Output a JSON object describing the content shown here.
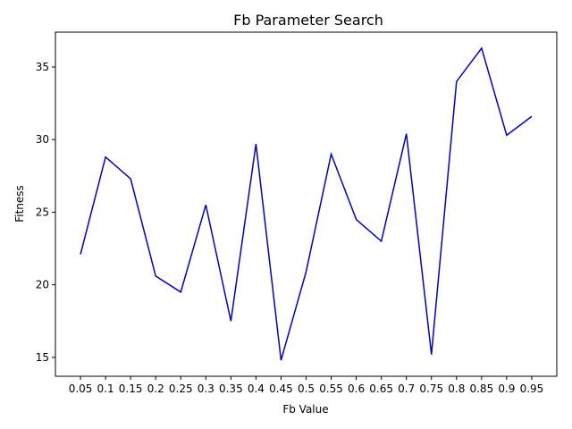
{
  "chart_data": {
    "type": "line",
    "title": "Fb Parameter Search",
    "xlabel": "Fb Value",
    "ylabel": "Fitness",
    "x": [
      0.05,
      0.1,
      0.15,
      0.2,
      0.25,
      0.3,
      0.35,
      0.4,
      0.45,
      0.5,
      0.55,
      0.6,
      0.65,
      0.7,
      0.75,
      0.8,
      0.85,
      0.9,
      0.95
    ],
    "x_tick_labels": [
      "0.05",
      "0.1",
      "0.15",
      "0.2",
      "0.25",
      "0.3",
      "0.35",
      "0.4",
      "0.45",
      "0.5",
      "0.55",
      "0.6",
      "0.65",
      "0.7",
      "0.75",
      "0.8",
      "0.85",
      "0.9",
      "0.95"
    ],
    "series": [
      {
        "values": [
          22.1,
          28.8,
          27.3,
          20.6,
          19.5,
          25.5,
          17.5,
          29.7,
          14.8,
          20.9,
          29.0,
          24.5,
          23.0,
          30.4,
          15.2,
          34.0,
          36.3,
          30.3,
          31.6
        ],
        "color": "#0000cc"
      }
    ],
    "xlim": [
      0.0,
      1.0
    ],
    "ylim": [
      13.7,
      37.4
    ],
    "y_ticks": [
      15,
      20,
      25,
      30,
      35
    ],
    "grid": false,
    "legend": "none"
  }
}
